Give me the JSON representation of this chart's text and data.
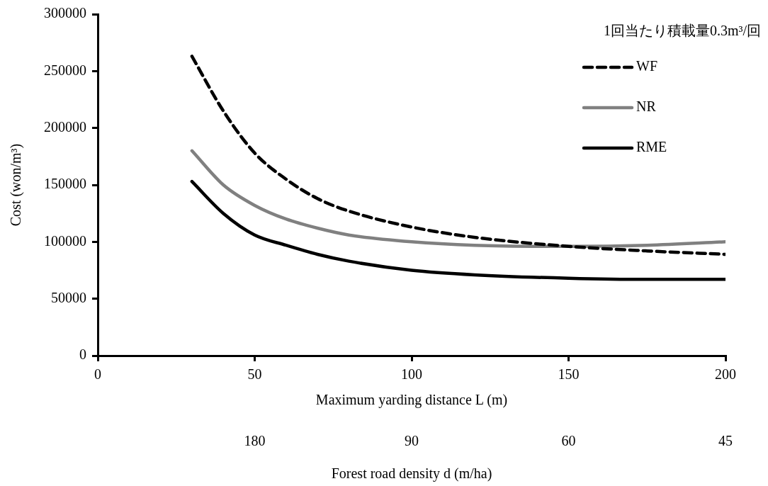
{
  "chart_data": {
    "type": "line",
    "xlabel": "Maximum yarding distance L (m)",
    "ylabel": "Cost (won/m³)",
    "x2label": "Forest road density d (m/ha)",
    "annotations": [
      "1回当たり積載量0.3m³/回",
      "180",
      "90",
      "60",
      "45"
    ],
    "x": [
      30,
      40,
      50,
      60,
      70,
      80,
      100,
      120,
      150,
      175,
      200
    ],
    "xlim": [
      0,
      200
    ],
    "xticks": [
      0,
      50,
      100,
      150,
      200
    ],
    "ylim": [
      0,
      300000
    ],
    "yticks": [
      0,
      50000,
      100000,
      150000,
      200000,
      250000,
      300000
    ],
    "grid": false,
    "legend": "top right",
    "marker": "none",
    "series": [
      {
        "name": "WF",
        "color": "#000000",
        "line_style": "dashed",
        "values": [
          263000,
          215000,
          178000,
          155000,
          138000,
          127000,
          113000,
          104000,
          96000,
          92000,
          89000
        ]
      },
      {
        "name": "NR",
        "color": "#808080",
        "line_style": "solid",
        "values": [
          180000,
          150000,
          132000,
          120000,
          112000,
          106000,
          100000,
          97000,
          96000,
          97000,
          100000
        ]
      },
      {
        "name": "RME",
        "color": "#000000",
        "line_style": "solid",
        "values": [
          153000,
          125000,
          106000,
          97000,
          89000,
          83000,
          75000,
          71000,
          68000,
          67000,
          67000
        ]
      }
    ]
  }
}
